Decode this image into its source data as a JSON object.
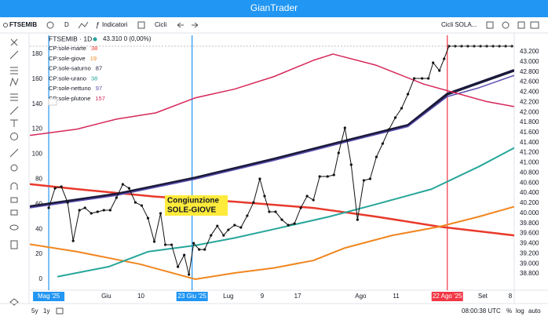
{
  "header": {
    "title": "GianTrader"
  },
  "toolbar": {
    "symbol": "FTSEMIB",
    "interval": "D",
    "indicators": "Indicatori",
    "cycles": "Cicli",
    "template": "Cicli SOLA..."
  },
  "bottom_bar": {
    "ranges": [
      "5y",
      "1y"
    ],
    "time": "08:00:38 UTC",
    "options": [
      "%",
      "log",
      "auto"
    ]
  },
  "chart_data": {
    "type": "line",
    "symbol_label": "FTSEMIB · 1D",
    "quote": "43.310 0 (0,00%)",
    "annotation": [
      "Congiunzione",
      "SOLE-GIOVE"
    ],
    "xlim": [
      0,
      123
    ],
    "xticks": [
      {
        "value": 4.8,
        "label": "Mag '25",
        "highlight": "#2196f3"
      },
      {
        "value": 19.4,
        "label": "Giu"
      },
      {
        "value": 28.2,
        "label": "10"
      },
      {
        "value": 41.2,
        "label": "23 Giu '25",
        "highlight": "#2196f3"
      },
      {
        "value": 50.4,
        "label": "Lug"
      },
      {
        "value": 59,
        "label": "9"
      },
      {
        "value": 68,
        "label": "17"
      },
      {
        "value": 84,
        "label": "Ago"
      },
      {
        "value": 93,
        "label": "11"
      },
      {
        "value": 106,
        "label": "22 Ago '25",
        "highlight": "#f23645"
      },
      {
        "value": 115,
        "label": "Set"
      },
      {
        "value": 123,
        "label": "8"
      }
    ],
    "ylim": [
      -8.8,
      195
    ],
    "yticks": [
      0,
      20,
      40,
      60,
      80,
      100,
      120,
      140,
      160,
      180
    ],
    "y2lim": [
      38474,
      43526
    ],
    "y2ticks": [
      {
        "value": 43200,
        "label": "43.200"
      },
      {
        "value": 43000,
        "label": "43.000"
      },
      {
        "value": 42800,
        "label": "42.800"
      },
      {
        "value": 42600,
        "label": "42.600"
      },
      {
        "value": 42400,
        "label": "42.400"
      },
      {
        "value": 42200,
        "label": "42.200"
      },
      {
        "value": 42000,
        "label": "42.000"
      },
      {
        "value": 41800,
        "label": "41.800"
      },
      {
        "value": 41600,
        "label": "41.600"
      },
      {
        "value": 41400,
        "label": "41.400"
      },
      {
        "value": 41200,
        "label": "41.200"
      },
      {
        "value": 41000,
        "label": "41.000"
      },
      {
        "value": 40800,
        "label": "40.800"
      },
      {
        "value": 40600,
        "label": "40.600"
      },
      {
        "value": 40400,
        "label": "40.400"
      },
      {
        "value": 40200,
        "label": "40.200"
      },
      {
        "value": 40000,
        "label": "40.000"
      },
      {
        "value": 39800,
        "label": "39.800"
      },
      {
        "value": 39600,
        "label": "39.600"
      },
      {
        "value": 39400,
        "label": "39.400"
      },
      {
        "value": 39200,
        "label": "39.200"
      },
      {
        "value": 39000,
        "label": "39.000"
      },
      {
        "value": 38800,
        "label": "38.800"
      }
    ],
    "grid": false,
    "series": [
      {
        "name": "CP:sole-marte",
        "color": "#e8392b",
        "legend_value": 38,
        "width": 2.5,
        "x": [
          0,
          12,
          32,
          52,
          72,
          88,
          104,
          123
        ],
        "values": [
          76,
          72,
          66,
          62,
          57,
          50,
          42,
          35
        ]
      },
      {
        "name": "CP:sole-giove",
        "color": "#f0861f",
        "legend_value": 19,
        "width": 2,
        "x": [
          0,
          12,
          28,
          42,
          52,
          62,
          72,
          80,
          92,
          104,
          114,
          123
        ],
        "values": [
          28,
          22,
          12,
          0,
          5,
          9,
          15,
          25,
          35,
          42,
          50,
          58
        ]
      },
      {
        "name": "CP:sole-saturno",
        "color": "#1a1a3a",
        "legend_value": 87,
        "width": 3.5,
        "x": [
          0,
          22,
          42,
          62,
          82,
          96,
          106,
          114,
          123
        ],
        "values": [
          58,
          68,
          81,
          96,
          112,
          123,
          148,
          157,
          167
        ]
      },
      {
        "name": "CP:sole-urano",
        "color": "#26a69a",
        "legend_value": 38,
        "width": 2,
        "x": [
          7,
          20,
          30,
          42,
          52,
          62,
          76,
          88,
          102,
          114,
          123
        ],
        "values": [
          2,
          10,
          22,
          27,
          33,
          40,
          50,
          60,
          72,
          90,
          105
        ]
      },
      {
        "name": "CP:sole-nettuno",
        "color": "#5b4fb0",
        "legend_value": 97,
        "width": 1.5,
        "x": [
          0,
          22,
          42,
          62,
          82,
          96,
          106,
          114,
          123
        ],
        "values": [
          57,
          67,
          80,
          95,
          111,
          122,
          146,
          153,
          163
        ]
      },
      {
        "name": "CP:sole-plutone",
        "color": "#d6285a",
        "legend_value": 157,
        "width": 1.5,
        "x": [
          0,
          12,
          22,
          32,
          42,
          52,
          62,
          72,
          77,
          88,
          100,
          108,
          116,
          123
        ],
        "values": [
          115,
          120,
          128,
          133,
          145,
          152,
          162,
          175,
          180,
          171,
          156,
          149,
          142,
          138
        ]
      },
      {
        "name": "FTSEMIB · 1D",
        "color": "#111111",
        "axis": "y2",
        "width": 1,
        "dots": true,
        "x": [
          4.8,
          6.4,
          8,
          9.6,
          11,
          12.6,
          14,
          15.6,
          17.2,
          18.8,
          20.4,
          22,
          23.6,
          25.2,
          26.8,
          28.4,
          30,
          31.6,
          33.2,
          34.4,
          36,
          37.6,
          39.2,
          40.4,
          41.6,
          43,
          44.4,
          46,
          47.6,
          49.2,
          50.4,
          52,
          53.6,
          55.2,
          56.8,
          58.4,
          59.6,
          60.8,
          62.4,
          64,
          65.6,
          67.2,
          68.8,
          70.4,
          72,
          73.6,
          75.6,
          77.2,
          78.4,
          80,
          81.6,
          83.2,
          84.8,
          86.4,
          88,
          89.6,
          91.2,
          92.8,
          94.4,
          96,
          97.6,
          99.6,
          101.2,
          102.4,
          104,
          105.2,
          106.4,
          108,
          109.6,
          111.2,
          112.8,
          114.4,
          116,
          117.6,
          119.2,
          120.8,
          122.4
        ],
        "values": [
          40106,
          40495,
          40526,
          40214,
          39452,
          40059,
          40106,
          39997,
          40028,
          40059,
          40059,
          40308,
          40573,
          40495,
          40214,
          40152,
          39903,
          39437,
          39997,
          39375,
          39375,
          38939,
          39172,
          38784,
          39406,
          39281,
          39281,
          39561,
          39748,
          39561,
          39670,
          39764,
          39717,
          39950,
          40214,
          40681,
          40339,
          40028,
          40028,
          39872,
          39764,
          39795,
          40106,
          40339,
          40261,
          40728,
          40728,
          40759,
          41194,
          41692,
          40961,
          39872,
          40650,
          40681,
          41116,
          41381,
          41661,
          41894,
          42081,
          42360,
          42671,
          42671,
          42671,
          42982,
          42827,
          43060,
          43310,
          43310,
          43310,
          43310,
          43310,
          43310,
          43310,
          43310,
          43310,
          43310,
          43310
        ]
      }
    ]
  }
}
